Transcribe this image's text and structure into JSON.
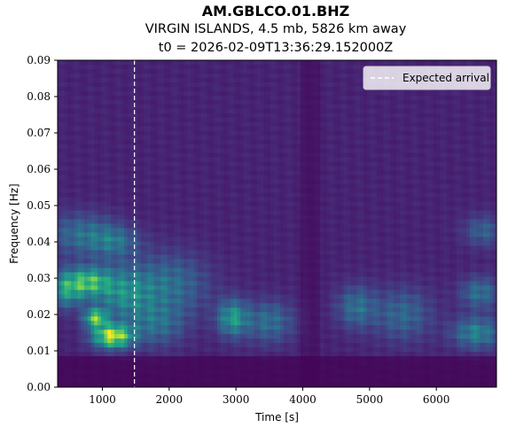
{
  "chart_data": {
    "type": "heatmap",
    "title": "AM.GBLCO.01.BHZ",
    "subtitle_lines": [
      "VIRGIN ISLANDS, 4.5 mb, 5826 km away",
      "t0 = 2026-02-09T13:36:29.152000Z"
    ],
    "xlabel": "Time [s]",
    "ylabel": "Frequency [Hz]",
    "xlim": [
      330,
      6900
    ],
    "ylim": [
      0.0,
      0.09
    ],
    "x_ticks": [
      1000,
      2000,
      3000,
      4000,
      5000,
      6000
    ],
    "x_tick_labels": [
      "1000",
      "2000",
      "3000",
      "4000",
      "5000",
      "6000"
    ],
    "y_ticks": [
      0.0,
      0.01,
      0.02,
      0.03,
      0.04,
      0.05,
      0.06,
      0.07,
      0.08,
      0.09
    ],
    "y_tick_labels": [
      "0.00",
      "0.01",
      "0.02",
      "0.03",
      "0.04",
      "0.05",
      "0.06",
      "0.07",
      "0.08",
      "0.09"
    ],
    "colormap": "viridis",
    "expected_arrival_s": 1480,
    "legend": {
      "label": "Expected arrival",
      "position": "top-right"
    },
    "grid": false,
    "energy_blobs": [
      {
        "t": 1150,
        "f": 0.014,
        "st": 200,
        "sf": 0.0022,
        "a": 1.0
      },
      {
        "t": 900,
        "f": 0.019,
        "st": 120,
        "sf": 0.0018,
        "a": 0.75
      },
      {
        "t": 800,
        "f": 0.029,
        "st": 220,
        "sf": 0.0028,
        "a": 0.62
      },
      {
        "t": 450,
        "f": 0.027,
        "st": 180,
        "sf": 0.0035,
        "a": 0.5
      },
      {
        "t": 1300,
        "f": 0.026,
        "st": 300,
        "sf": 0.005,
        "a": 0.42
      },
      {
        "t": 700,
        "f": 0.042,
        "st": 350,
        "sf": 0.004,
        "a": 0.32
      },
      {
        "t": 1200,
        "f": 0.04,
        "st": 250,
        "sf": 0.003,
        "a": 0.28
      },
      {
        "t": 2000,
        "f": 0.028,
        "st": 400,
        "sf": 0.006,
        "a": 0.32
      },
      {
        "t": 1800,
        "f": 0.017,
        "st": 300,
        "sf": 0.004,
        "a": 0.28
      },
      {
        "t": 2950,
        "f": 0.019,
        "st": 160,
        "sf": 0.0035,
        "a": 0.52
      },
      {
        "t": 3500,
        "f": 0.018,
        "st": 250,
        "sf": 0.004,
        "a": 0.32
      },
      {
        "t": 4800,
        "f": 0.022,
        "st": 200,
        "sf": 0.004,
        "a": 0.32
      },
      {
        "t": 5500,
        "f": 0.02,
        "st": 300,
        "sf": 0.005,
        "a": 0.28
      },
      {
        "t": 6600,
        "f": 0.015,
        "st": 250,
        "sf": 0.003,
        "a": 0.42
      },
      {
        "t": 6650,
        "f": 0.026,
        "st": 200,
        "sf": 0.003,
        "a": 0.33
      },
      {
        "t": 6700,
        "f": 0.043,
        "st": 200,
        "sf": 0.003,
        "a": 0.25
      }
    ]
  }
}
